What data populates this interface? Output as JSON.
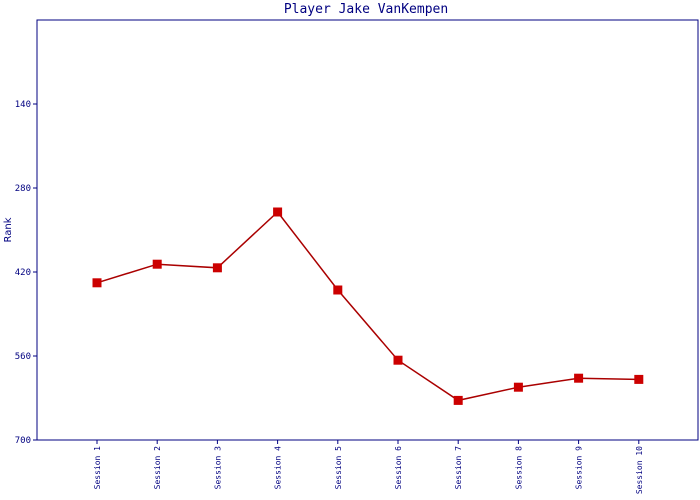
{
  "chart_data": {
    "type": "line",
    "title": "Player Jake VanKempen",
    "xlabel": "",
    "ylabel": "Rank",
    "y_inverted": true,
    "ylim": [
      0,
      700
    ],
    "yticks": [
      140,
      280,
      420,
      560,
      700
    ],
    "grid": false,
    "legend": "none",
    "categories": [
      "Session 1",
      "Session 2",
      "Session 3",
      "Session 4",
      "Session 5",
      "Session 6",
      "Session 7",
      "Session 8",
      "Session 9",
      "Session 10"
    ],
    "series": [
      {
        "values": [
          438,
          407,
          413,
          320,
          450,
          567,
          634,
          612,
          597,
          599
        ]
      }
    ],
    "colors": {
      "line": "#aa0000",
      "marker": "#cc0000",
      "axis": "#000080",
      "text": "#000080"
    }
  }
}
